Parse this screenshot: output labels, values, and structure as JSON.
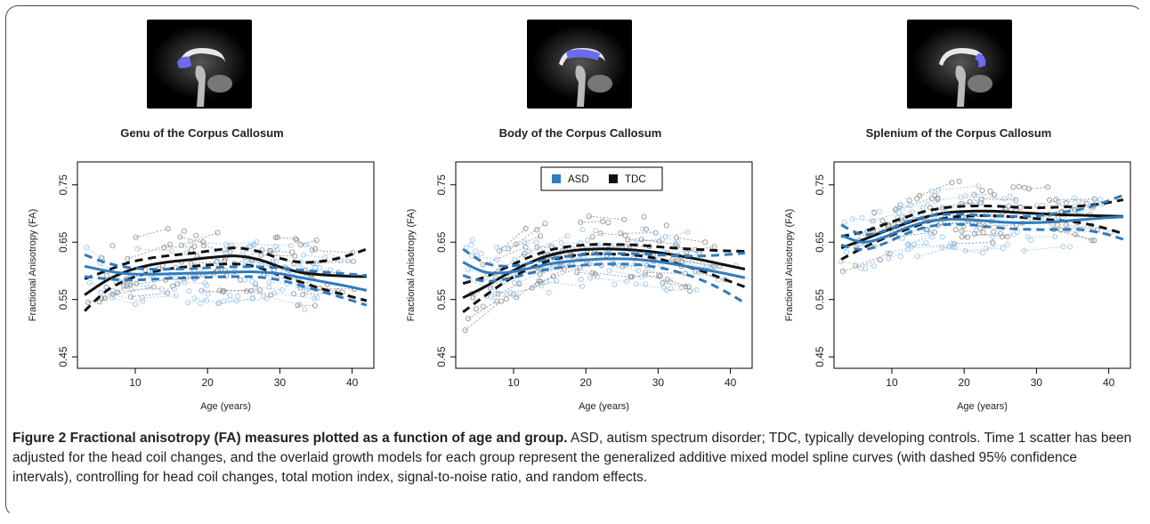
{
  "colors": {
    "asd": "#2f7bbf",
    "asd_point": "#9cc3e6",
    "tdc": "#111111",
    "tdc_point": "#8a8a8a"
  },
  "legend": {
    "items": [
      {
        "label": "ASD",
        "color": "#2f7bbf"
      },
      {
        "label": "TDC",
        "color": "#111111"
      }
    ]
  },
  "caption": {
    "label": "Figure 2 Fractional anisotropy (FA) measures plotted as a function of age and group.",
    "text": "ASD, autism spectrum disorder; TDC, typically developing controls. Time 1 scatter has been adjusted for the head coil changes, and the overlaid growth models for each group represent the generalized additive mixed model spline curves (with dashed 95% confidence intervals), controlling for head coil changes, total motion index, signal-to-noise ratio, and random effects."
  },
  "chart_data": [
    {
      "type": "line",
      "title": "Genu of the Corpus Callosum",
      "xlabel": "Age (years)",
      "ylabel": "Fractional Anisotropy (FA)",
      "xlim": [
        2,
        43
      ],
      "ylim": [
        0.43,
        0.79
      ],
      "xticks": [
        "10",
        "20",
        "30",
        "40"
      ],
      "yticks": [
        "0.45",
        "0.55",
        "0.65",
        "0.75"
      ],
      "grid": false,
      "highlight_region": "genu",
      "x": [
        3,
        6,
        9,
        12,
        15,
        18,
        21,
        24,
        27,
        30,
        33,
        36,
        39,
        42
      ],
      "series": [
        {
          "name": "TDC",
          "fit": [
            0.558,
            0.583,
            0.6,
            0.61,
            0.616,
            0.62,
            0.624,
            0.626,
            0.62,
            0.607,
            0.597,
            0.593,
            0.591,
            0.59
          ],
          "lower": [
            0.53,
            0.565,
            0.585,
            0.597,
            0.604,
            0.608,
            0.611,
            0.612,
            0.606,
            0.592,
            0.58,
            0.568,
            0.558,
            0.548
          ],
          "upper": [
            0.586,
            0.6,
            0.614,
            0.622,
            0.627,
            0.631,
            0.636,
            0.64,
            0.634,
            0.622,
            0.615,
            0.617,
            0.625,
            0.638
          ]
        },
        {
          "name": "ASD",
          "fit": [
            0.608,
            0.6,
            0.595,
            0.594,
            0.595,
            0.596,
            0.597,
            0.598,
            0.598,
            0.595,
            0.588,
            0.581,
            0.574,
            0.566
          ],
          "lower": [
            0.59,
            0.586,
            0.584,
            0.585,
            0.587,
            0.588,
            0.589,
            0.59,
            0.589,
            0.584,
            0.574,
            0.563,
            0.552,
            0.54
          ],
          "upper": [
            0.628,
            0.614,
            0.606,
            0.603,
            0.603,
            0.604,
            0.606,
            0.607,
            0.607,
            0.605,
            0.601,
            0.598,
            0.595,
            0.592
          ]
        }
      ]
    },
    {
      "type": "line",
      "title": "Body of the Corpus Callosum",
      "xlabel": "Age (years)",
      "ylabel": "Fractional Anisotropy (FA)",
      "xlim": [
        2,
        43
      ],
      "ylim": [
        0.43,
        0.79
      ],
      "xticks": [
        "10",
        "20",
        "30",
        "40"
      ],
      "yticks": [
        "0.45",
        "0.55",
        "0.65",
        "0.75"
      ],
      "grid": false,
      "legend_position": "top-center",
      "highlight_region": "body",
      "x": [
        3,
        6,
        9,
        12,
        15,
        18,
        21,
        24,
        27,
        30,
        33,
        36,
        39,
        42
      ],
      "series": [
        {
          "name": "TDC",
          "fit": [
            0.553,
            0.572,
            0.594,
            0.613,
            0.627,
            0.635,
            0.638,
            0.638,
            0.636,
            0.632,
            0.626,
            0.619,
            0.611,
            0.603
          ],
          "lower": [
            0.528,
            0.556,
            0.582,
            0.603,
            0.618,
            0.626,
            0.63,
            0.629,
            0.627,
            0.621,
            0.611,
            0.6,
            0.586,
            0.572
          ],
          "upper": [
            0.578,
            0.589,
            0.606,
            0.623,
            0.636,
            0.643,
            0.646,
            0.646,
            0.645,
            0.642,
            0.639,
            0.637,
            0.635,
            0.634
          ]
        },
        {
          "name": "ASD",
          "fit": [
            0.615,
            0.598,
            0.597,
            0.604,
            0.612,
            0.617,
            0.62,
            0.621,
            0.62,
            0.616,
            0.61,
            0.603,
            0.596,
            0.588
          ],
          "lower": [
            0.592,
            0.582,
            0.586,
            0.595,
            0.603,
            0.608,
            0.611,
            0.612,
            0.611,
            0.606,
            0.597,
            0.584,
            0.566,
            0.544
          ],
          "upper": [
            0.638,
            0.614,
            0.608,
            0.613,
            0.621,
            0.626,
            0.629,
            0.63,
            0.63,
            0.628,
            0.626,
            0.626,
            0.628,
            0.631
          ]
        }
      ]
    },
    {
      "type": "line",
      "title": "Splenium of the Corpus Callosum",
      "xlabel": "Age (years)",
      "ylabel": "Fractional Anisotropy (FA)",
      "xlim": [
        2,
        43
      ],
      "ylim": [
        0.43,
        0.79
      ],
      "xticks": [
        "10",
        "20",
        "30",
        "40"
      ],
      "yticks": [
        "0.45",
        "0.55",
        "0.65",
        "0.75"
      ],
      "grid": false,
      "highlight_region": "splenium",
      "x": [
        3,
        6,
        9,
        12,
        15,
        18,
        21,
        24,
        27,
        30,
        33,
        36,
        39,
        42
      ],
      "series": [
        {
          "name": "TDC",
          "fit": [
            0.64,
            0.654,
            0.669,
            0.683,
            0.695,
            0.702,
            0.704,
            0.704,
            0.702,
            0.7,
            0.698,
            0.697,
            0.696,
            0.695
          ],
          "lower": [
            0.62,
            0.64,
            0.657,
            0.672,
            0.685,
            0.693,
            0.696,
            0.696,
            0.694,
            0.691,
            0.688,
            0.684,
            0.676,
            0.665
          ],
          "upper": [
            0.66,
            0.668,
            0.681,
            0.694,
            0.705,
            0.711,
            0.713,
            0.713,
            0.711,
            0.71,
            0.711,
            0.713,
            0.717,
            0.724
          ]
        },
        {
          "name": "ASD",
          "fit": [
            0.662,
            0.65,
            0.659,
            0.675,
            0.686,
            0.69,
            0.689,
            0.686,
            0.684,
            0.684,
            0.686,
            0.689,
            0.692,
            0.694
          ],
          "lower": [
            0.645,
            0.637,
            0.648,
            0.665,
            0.677,
            0.681,
            0.68,
            0.676,
            0.673,
            0.672,
            0.672,
            0.672,
            0.666,
            0.655
          ],
          "upper": [
            0.68,
            0.663,
            0.67,
            0.685,
            0.695,
            0.699,
            0.698,
            0.696,
            0.695,
            0.696,
            0.701,
            0.707,
            0.718,
            0.732
          ]
        }
      ]
    }
  ]
}
